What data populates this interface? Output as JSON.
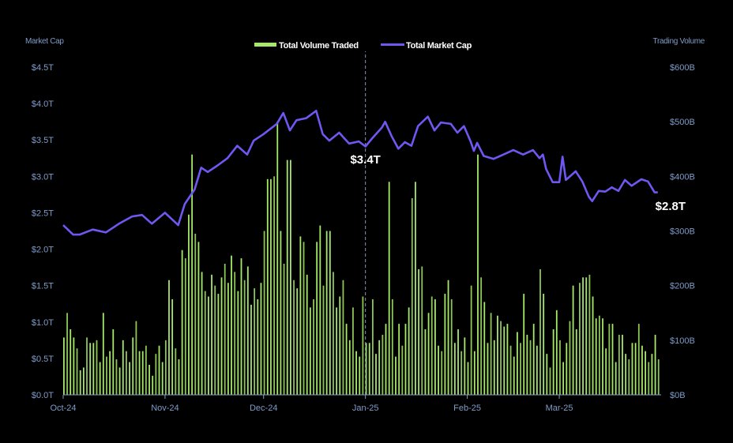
{
  "chart_data": {
    "type": "bar+line",
    "title": "",
    "legend": {
      "placement": "top-center",
      "entries": [
        "Total Volume Traded",
        "Total Market Cap"
      ]
    },
    "y_left": {
      "label": "Market Cap",
      "ticks": [
        "$0.0T",
        "$0.5T",
        "$1.0T",
        "$1.5T",
        "$2.0T",
        "$2.5T",
        "$3.0T",
        "$3.5T",
        "$4.0T",
        "$4.5T"
      ],
      "range": [
        0,
        4.5
      ],
      "unit": "T"
    },
    "y_right": {
      "label": "Trading Volume",
      "ticks": [
        "$0B",
        "$100B",
        "$200B",
        "$300B",
        "$400B",
        "$500B",
        "$600B"
      ],
      "range": [
        0,
        600
      ],
      "unit": "B"
    },
    "x_ticks": [
      {
        "label": "Oct-24",
        "date": "2024-10-01"
      },
      {
        "label": "Nov-24",
        "date": "2024-11-01"
      },
      {
        "label": "Dec-24",
        "date": "2024-12-01"
      },
      {
        "label": "Jan-25",
        "date": "2025-01-01"
      },
      {
        "label": "Feb-25",
        "date": "2025-02-01"
      },
      {
        "label": "Mar-25",
        "date": "2025-03-01"
      }
    ],
    "x_range": [
      "2024-10-01",
      "2025-03-31"
    ],
    "grid": false,
    "colors": {
      "volume": "#a6e868",
      "market_cap": "#6f58f2",
      "axis_text": "#7f9cc9",
      "background": "#000000"
    },
    "volume_series": {
      "name": "Total Volume Traded",
      "start_date": "2024-10-01",
      "frequency": "daily",
      "values": [
        105,
        150,
        120,
        105,
        85,
        45,
        50,
        105,
        95,
        95,
        100,
        60,
        150,
        70,
        80,
        120,
        65,
        50,
        100,
        80,
        60,
        105,
        135,
        80,
        80,
        90,
        55,
        35,
        75,
        90,
        60,
        100,
        210,
        175,
        85,
        65,
        265,
        250,
        330,
        440,
        295,
        280,
        225,
        190,
        180,
        220,
        200,
        185,
        215,
        240,
        205,
        255,
        225,
        190,
        250,
        210,
        235,
        165,
        195,
        175,
        205,
        300,
        395,
        395,
        400,
        500,
        300,
        240,
        430,
        430,
        210,
        195,
        290,
        280,
        220,
        160,
        175,
        280,
        310,
        200,
        300,
        300,
        225,
        160,
        180,
        210,
        130,
        100,
        160,
        80,
        70,
        180,
        95,
        95,
        175,
        75,
        100,
        110,
        130,
        390,
        175,
        70,
        130,
        90,
        130,
        160,
        360,
        390,
        230,
        235,
        120,
        150,
        180,
        175,
        90,
        80,
        185,
        210,
        175,
        95,
        120,
        80,
        105,
        60,
        200,
        80,
        440,
        215,
        170,
        95,
        150,
        100,
        145,
        135,
        125,
        130,
        90,
        70,
        115,
        95,
        185,
        110,
        100,
        130,
        90,
        230,
        185,
        75,
        50,
        120,
        155,
        100,
        60,
        95,
        135,
        200,
        120,
        205,
        215,
        215,
        220,
        180,
        140,
        145,
        140,
        85,
        130,
        130,
        60,
        110,
        110,
        75,
        65,
        95,
        95,
        130,
        90,
        80,
        60,
        75,
        110,
        65
      ]
    },
    "market_cap_series": {
      "name": "Total Market Cap",
      "points": [
        [
          "2024-10-01",
          2.33
        ],
        [
          "2024-10-04",
          2.2
        ],
        [
          "2024-10-06",
          2.2
        ],
        [
          "2024-10-10",
          2.27
        ],
        [
          "2024-10-14",
          2.23
        ],
        [
          "2024-10-18",
          2.35
        ],
        [
          "2024-10-22",
          2.45
        ],
        [
          "2024-10-25",
          2.47
        ],
        [
          "2024-10-28",
          2.35
        ],
        [
          "2024-11-01",
          2.5
        ],
        [
          "2024-11-05",
          2.33
        ],
        [
          "2024-11-07",
          2.62
        ],
        [
          "2024-11-10",
          2.82
        ],
        [
          "2024-11-12",
          3.12
        ],
        [
          "2024-11-14",
          3.06
        ],
        [
          "2024-11-17",
          3.15
        ],
        [
          "2024-11-20",
          3.25
        ],
        [
          "2024-11-23",
          3.42
        ],
        [
          "2024-11-26",
          3.3
        ],
        [
          "2024-11-28",
          3.49
        ],
        [
          "2024-12-01",
          3.58
        ],
        [
          "2024-12-05",
          3.72
        ],
        [
          "2024-12-07",
          3.87
        ],
        [
          "2024-12-09",
          3.63
        ],
        [
          "2024-12-11",
          3.77
        ],
        [
          "2024-12-14",
          3.8
        ],
        [
          "2024-12-17",
          3.9
        ],
        [
          "2024-12-19",
          3.58
        ],
        [
          "2024-12-21",
          3.49
        ],
        [
          "2024-12-24",
          3.6
        ],
        [
          "2024-12-27",
          3.45
        ],
        [
          "2024-12-30",
          3.48
        ],
        [
          "2025-01-01",
          3.41
        ],
        [
          "2025-01-03",
          3.52
        ],
        [
          "2025-01-06",
          3.67
        ],
        [
          "2025-01-07",
          3.75
        ],
        [
          "2025-01-09",
          3.55
        ],
        [
          "2025-01-11",
          3.38
        ],
        [
          "2025-01-13",
          3.47
        ],
        [
          "2025-01-15",
          3.42
        ],
        [
          "2025-01-17",
          3.69
        ],
        [
          "2025-01-20",
          3.82
        ],
        [
          "2025-01-22",
          3.63
        ],
        [
          "2025-01-24",
          3.74
        ],
        [
          "2025-01-27",
          3.72
        ],
        [
          "2025-01-29",
          3.6
        ],
        [
          "2025-01-31",
          3.69
        ],
        [
          "2025-02-02",
          3.48
        ],
        [
          "2025-02-03",
          3.35
        ],
        [
          "2025-02-04",
          3.46
        ],
        [
          "2025-02-06",
          3.28
        ],
        [
          "2025-02-09",
          3.24
        ],
        [
          "2025-02-12",
          3.3
        ],
        [
          "2025-02-15",
          3.36
        ],
        [
          "2025-02-18",
          3.3
        ],
        [
          "2025-02-21",
          3.36
        ],
        [
          "2025-02-23",
          3.25
        ],
        [
          "2025-02-24",
          3.3
        ],
        [
          "2025-02-25",
          3.1
        ],
        [
          "2025-02-27",
          2.92
        ],
        [
          "2025-03-01",
          2.92
        ],
        [
          "2025-03-02",
          3.27
        ],
        [
          "2025-03-03",
          2.95
        ],
        [
          "2025-03-06",
          3.07
        ],
        [
          "2025-03-08",
          2.93
        ],
        [
          "2025-03-10",
          2.72
        ],
        [
          "2025-03-11",
          2.66
        ],
        [
          "2025-03-13",
          2.8
        ],
        [
          "2025-03-15",
          2.79
        ],
        [
          "2025-03-17",
          2.85
        ],
        [
          "2025-03-19",
          2.8
        ],
        [
          "2025-03-21",
          2.95
        ],
        [
          "2025-03-23",
          2.87
        ],
        [
          "2025-03-26",
          2.96
        ],
        [
          "2025-03-28",
          2.93
        ],
        [
          "2025-03-30",
          2.78
        ],
        [
          "2025-03-31",
          2.78
        ]
      ]
    },
    "annotations": [
      {
        "date": "2025-01-01",
        "text": "$3.4T",
        "marker_line": "dashed"
      },
      {
        "date": "2025-03-31",
        "text": "$2.8T"
      }
    ]
  }
}
